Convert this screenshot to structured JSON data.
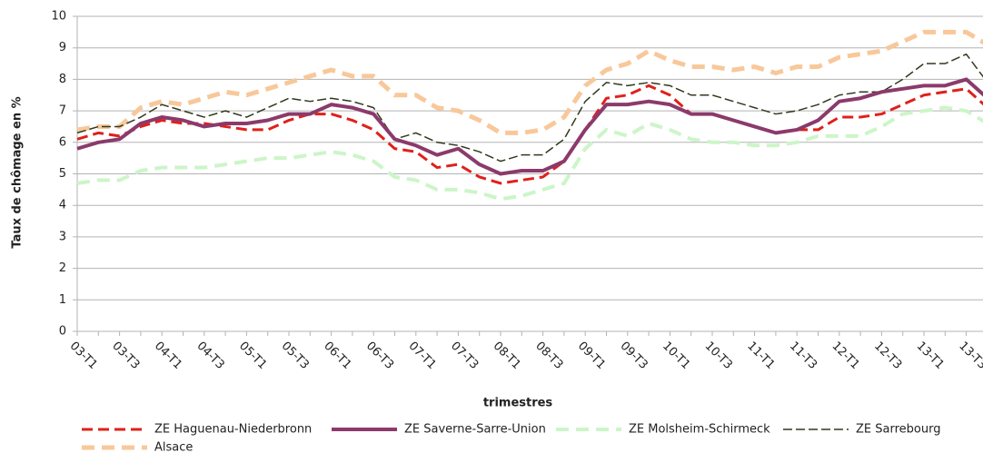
{
  "chart_data": {
    "type": "line",
    "xlabel": "trimestres",
    "ylabel": "Taux de chômage en %",
    "ylim": [
      0,
      10
    ],
    "yticks": [
      0,
      1,
      2,
      3,
      4,
      5,
      6,
      7,
      8,
      9,
      10
    ],
    "grid": true,
    "legend": "bottom",
    "categories": [
      "03-T1",
      null,
      "03-T3",
      null,
      "04-T1",
      null,
      "04-T3",
      null,
      "05-T1",
      null,
      "05-T3",
      null,
      "06-T1",
      null,
      "06-T3",
      null,
      "07-T1",
      null,
      "07-T3",
      null,
      "08-T1",
      null,
      "08-T3",
      null,
      "09-T1",
      null,
      "09-T3",
      null,
      "10-T1",
      null,
      "10-T3",
      null,
      "11-T1",
      null,
      "11-T3",
      null,
      "12-T1",
      null,
      "12-T3",
      null,
      "13-T1",
      null,
      "13-T3",
      null
    ],
    "series": [
      {
        "name": "ZE Haguenau-Niederbronn",
        "color": "#e0201b",
        "values": [
          6.1,
          6.3,
          6.2,
          6.5,
          6.7,
          6.6,
          6.6,
          6.5,
          6.4,
          6.4,
          6.7,
          6.9,
          6.9,
          6.7,
          6.4,
          5.8,
          5.7,
          5.2,
          5.3,
          4.9,
          4.7,
          4.8,
          4.9,
          5.4,
          6.4,
          7.4,
          7.5,
          7.8,
          7.5,
          6.9,
          6.9,
          6.7,
          6.5,
          6.3,
          6.4,
          6.4,
          6.8,
          6.8,
          6.9,
          7.2,
          7.5,
          7.6,
          7.7,
          7.1
        ]
      },
      {
        "name": "ZE Saverne-Sarre-Union",
        "color": "#8b3a6b",
        "values": [
          5.8,
          6.0,
          6.1,
          6.6,
          6.8,
          6.7,
          6.5,
          6.6,
          6.6,
          6.7,
          6.9,
          6.9,
          7.2,
          7.1,
          6.9,
          6.1,
          5.9,
          5.6,
          5.8,
          5.3,
          5.0,
          5.1,
          5.1,
          5.4,
          6.4,
          7.2,
          7.2,
          7.3,
          7.2,
          6.9,
          6.9,
          6.7,
          6.5,
          6.3,
          6.4,
          6.7,
          7.3,
          7.4,
          7.6,
          7.7,
          7.8,
          7.8,
          8.0,
          7.4
        ]
      },
      {
        "name": "ZE Molsheim-Schirmeck",
        "color": "#ccf5c8",
        "values": [
          4.7,
          4.8,
          4.8,
          5.1,
          5.2,
          5.2,
          5.2,
          5.3,
          5.4,
          5.5,
          5.5,
          5.6,
          5.7,
          5.6,
          5.4,
          4.9,
          4.8,
          4.5,
          4.5,
          4.4,
          4.2,
          4.3,
          4.5,
          4.7,
          5.8,
          6.4,
          6.2,
          6.6,
          6.4,
          6.1,
          6.0,
          6.0,
          5.9,
          5.9,
          6.0,
          6.2,
          6.2,
          6.2,
          6.5,
          6.9,
          7.0,
          7.1,
          7.0,
          6.6
        ]
      },
      {
        "name": "ZE Sarrebourg",
        "color": "#2f3a1c",
        "values": [
          6.3,
          6.5,
          6.5,
          6.8,
          7.2,
          7.0,
          6.8,
          7.0,
          6.8,
          7.1,
          7.4,
          7.3,
          7.4,
          7.3,
          7.1,
          6.1,
          6.3,
          6.0,
          5.9,
          5.7,
          5.4,
          5.6,
          5.6,
          6.1,
          7.3,
          7.9,
          7.8,
          7.9,
          7.8,
          7.5,
          7.5,
          7.3,
          7.1,
          6.9,
          7.0,
          7.2,
          7.5,
          7.6,
          7.6,
          8.0,
          8.5,
          8.5,
          8.8,
          7.9
        ]
      },
      {
        "name": "Alsace",
        "color": "#f8c89a",
        "values": [
          6.4,
          6.5,
          6.5,
          7.1,
          7.3,
          7.2,
          7.4,
          7.6,
          7.5,
          7.7,
          7.9,
          8.1,
          8.3,
          8.1,
          8.1,
          7.5,
          7.5,
          7.1,
          7.0,
          6.7,
          6.3,
          6.3,
          6.4,
          6.8,
          7.8,
          8.3,
          8.5,
          8.9,
          8.6,
          8.4,
          8.4,
          8.3,
          8.4,
          8.2,
          8.4,
          8.4,
          8.7,
          8.8,
          8.9,
          9.2,
          9.5,
          9.5,
          9.5,
          9.1
        ]
      }
    ]
  }
}
